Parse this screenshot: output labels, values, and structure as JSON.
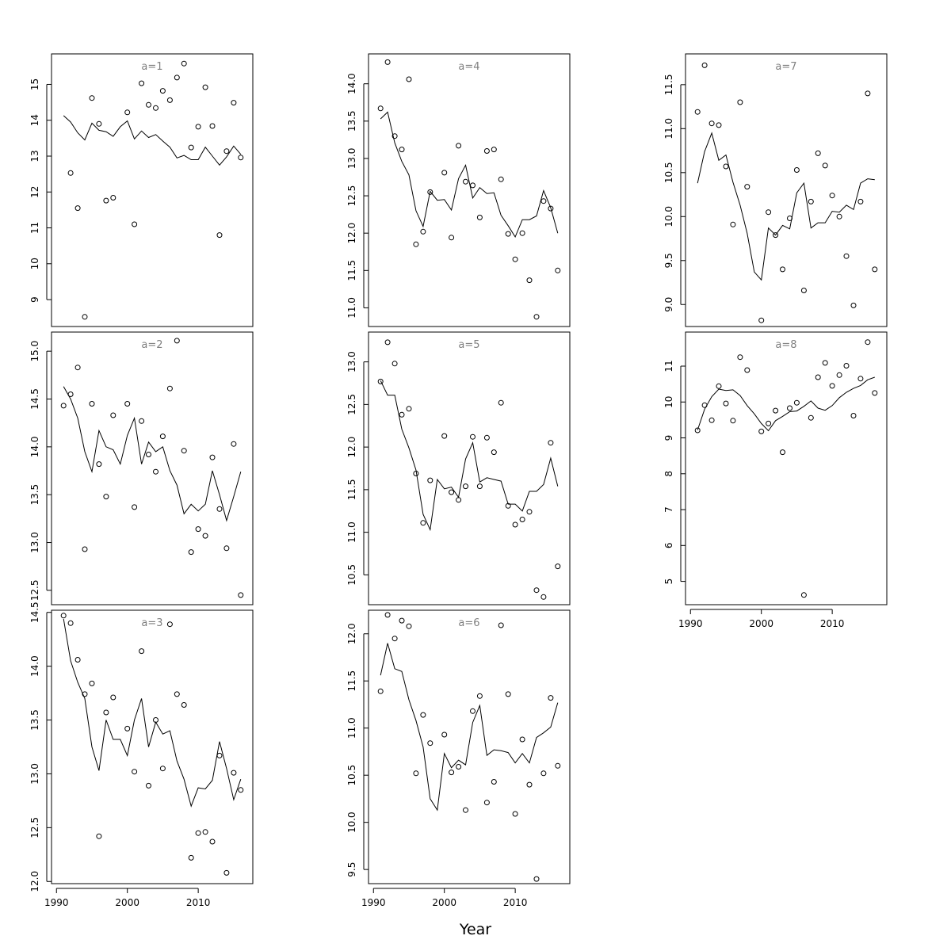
{
  "chart_data": {
    "type": "scatter",
    "xlabel": "Year",
    "x_ticks": [
      1990,
      2000,
      2010
    ],
    "colors": {
      "points": "#000000",
      "line": "#000000",
      "title": "#808080"
    },
    "years": [
      1991,
      1992,
      1993,
      1994,
      1995,
      1996,
      1997,
      1998,
      1999,
      2000,
      2001,
      2002,
      2003,
      2004,
      2005,
      2006,
      2007,
      2008,
      2009,
      2010,
      2011,
      2012,
      2013,
      2014,
      2015,
      2016
    ],
    "panels": [
      {
        "title": "a=1",
        "xlim": [
          1989.3,
          2017.7
        ],
        "ylim": [
          8.25,
          15.85
        ],
        "y_ticks": [
          "9",
          "10",
          "11",
          "12",
          "13",
          "14",
          "15"
        ],
        "observed": [
          null,
          12.53,
          11.55,
          8.52,
          14.62,
          13.9,
          11.76,
          11.84,
          null,
          14.22,
          11.1,
          15.03,
          14.43,
          14.34,
          14.82,
          14.56,
          15.19,
          15.58,
          13.24,
          13.82,
          14.92,
          13.84,
          10.8,
          13.14,
          14.49,
          12.96
        ],
        "fitted": [
          14.13,
          13.95,
          13.65,
          13.45,
          13.92,
          13.72,
          13.68,
          13.55,
          13.82,
          13.98,
          13.48,
          13.7,
          13.52,
          13.6,
          13.42,
          13.25,
          12.95,
          13.02,
          12.9,
          12.9,
          13.25,
          13.0,
          12.75,
          12.98,
          13.28,
          13.05
        ]
      },
      {
        "title": "a=2",
        "xlim": [
          1989.3,
          2017.7
        ],
        "ylim": [
          12.35,
          15.2
        ],
        "y_ticks": [
          "12.5",
          "13.0",
          "13.5",
          "14.0",
          "14.5",
          "15.0"
        ],
        "observed": [
          14.43,
          14.55,
          14.83,
          12.93,
          14.45,
          13.82,
          13.48,
          14.33,
          null,
          14.45,
          13.37,
          14.27,
          13.92,
          13.74,
          14.11,
          14.61,
          15.11,
          13.96,
          12.9,
          13.14,
          13.07,
          13.89,
          13.35,
          12.94,
          14.03,
          12.45
        ],
        "fitted": [
          14.63,
          14.5,
          14.3,
          13.95,
          13.74,
          14.17,
          14.0,
          13.97,
          13.82,
          14.12,
          14.3,
          13.82,
          14.05,
          13.95,
          14.0,
          13.75,
          13.6,
          13.3,
          13.4,
          13.33,
          13.4,
          13.75,
          13.5,
          13.23,
          13.48,
          13.74
        ]
      },
      {
        "title": "a=3",
        "xlim": [
          1989.3,
          2017.7
        ],
        "ylim": [
          11.98,
          14.52
        ],
        "y_ticks": [
          "12.0",
          "12.5",
          "13.0",
          "13.5",
          "14.0",
          "14.5"
        ],
        "observed": [
          14.47,
          14.4,
          14.06,
          13.74,
          13.84,
          12.42,
          13.57,
          13.71,
          null,
          13.42,
          13.02,
          14.14,
          12.89,
          13.5,
          13.05,
          14.39,
          13.74,
          13.64,
          12.22,
          12.45,
          12.46,
          12.37,
          13.17,
          12.08,
          13.01,
          12.85
        ],
        "fitted": [
          14.44,
          14.05,
          13.85,
          13.7,
          13.25,
          13.03,
          13.5,
          13.32,
          13.32,
          13.17,
          13.5,
          13.7,
          13.25,
          13.48,
          13.37,
          13.4,
          13.12,
          12.95,
          12.7,
          12.87,
          12.86,
          12.94,
          13.3,
          13.05,
          12.76,
          12.95
        ]
      },
      {
        "title": "a=4",
        "xlim": [
          1989.3,
          2017.7
        ],
        "ylim": [
          10.75,
          14.4
        ],
        "y_ticks": [
          "11.0",
          "11.5",
          "12.0",
          "12.5",
          "13.0",
          "13.5",
          "14.0"
        ],
        "observed": [
          13.67,
          14.29,
          13.3,
          13.12,
          14.06,
          11.85,
          12.02,
          12.55,
          null,
          12.81,
          11.94,
          13.17,
          12.69,
          12.64,
          12.21,
          13.1,
          13.12,
          12.72,
          11.99,
          11.65,
          12.0,
          11.37,
          10.88,
          12.43,
          12.33,
          11.5
        ],
        "fitted": [
          13.53,
          13.62,
          13.21,
          12.96,
          12.78,
          12.3,
          12.09,
          12.56,
          12.44,
          12.45,
          12.31,
          12.73,
          12.91,
          12.47,
          12.61,
          12.53,
          12.54,
          12.24,
          12.1,
          11.95,
          12.18,
          12.18,
          12.23,
          12.57,
          12.34,
          12.0
        ]
      },
      {
        "title": "a=5",
        "xlim": [
          1989.3,
          2017.7
        ],
        "ylim": [
          10.15,
          13.35
        ],
        "y_ticks": [
          "10.5",
          "11.0",
          "11.5",
          "12.0",
          "12.5",
          "13.0"
        ],
        "observed": [
          12.77,
          13.23,
          12.98,
          12.38,
          12.45,
          11.69,
          11.11,
          11.61,
          null,
          12.13,
          11.47,
          11.38,
          11.54,
          12.12,
          11.54,
          12.11,
          11.94,
          12.52,
          11.31,
          11.09,
          11.15,
          11.24,
          10.32,
          10.24,
          12.05,
          10.6
        ],
        "fitted": [
          12.78,
          12.61,
          12.61,
          12.21,
          11.99,
          11.73,
          11.21,
          11.03,
          11.62,
          11.51,
          11.53,
          11.41,
          11.86,
          12.05,
          11.59,
          11.64,
          11.62,
          11.6,
          11.33,
          11.33,
          11.25,
          11.48,
          11.48,
          11.56,
          11.87,
          11.54
        ]
      },
      {
        "title": "a=6",
        "xlim": [
          1989.3,
          2017.7
        ],
        "ylim": [
          9.35,
          12.25
        ],
        "y_ticks": [
          "9.5",
          "10.0",
          "10.5",
          "11.0",
          "11.5",
          "12.0"
        ],
        "observed": [
          11.39,
          12.2,
          11.95,
          12.14,
          12.08,
          10.52,
          11.14,
          10.84,
          null,
          10.93,
          10.53,
          10.59,
          10.13,
          11.18,
          11.34,
          10.21,
          10.43,
          12.09,
          11.36,
          10.09,
          10.88,
          10.4,
          9.4,
          10.52,
          11.32,
          10.6
        ],
        "fitted": [
          11.56,
          11.9,
          11.63,
          11.6,
          11.3,
          11.08,
          10.8,
          10.25,
          10.13,
          10.73,
          10.58,
          10.66,
          10.61,
          11.06,
          11.24,
          10.71,
          10.77,
          10.76,
          10.74,
          10.63,
          10.73,
          10.63,
          10.9,
          10.95,
          11.01,
          11.27
        ]
      },
      {
        "title": "a=7",
        "xlim": [
          1989.3,
          2017.7
        ],
        "ylim": [
          8.75,
          11.85
        ],
        "y_ticks": [
          "9.0",
          "9.5",
          "10.0",
          "10.5",
          "11.0",
          "11.5"
        ],
        "observed": [
          11.19,
          11.72,
          11.06,
          11.04,
          10.57,
          9.91,
          11.3,
          10.34,
          null,
          8.82,
          10.05,
          9.79,
          9.4,
          9.98,
          10.53,
          9.16,
          10.17,
          10.72,
          10.58,
          10.24,
          10.0,
          9.55,
          8.99,
          10.17,
          11.4,
          9.4
        ],
        "fitted": [
          10.38,
          10.74,
          10.95,
          10.64,
          10.7,
          10.39,
          10.13,
          9.81,
          9.37,
          9.28,
          9.87,
          9.79,
          9.9,
          9.86,
          10.27,
          10.38,
          9.87,
          9.93,
          9.93,
          10.06,
          10.05,
          10.13,
          10.08,
          10.38,
          10.43,
          10.42
        ]
      },
      {
        "title": "a=8",
        "xlim": [
          1989.3,
          2017.7
        ],
        "ylim": [
          4.35,
          11.95
        ],
        "y_ticks": [
          "5",
          "6",
          "7",
          "8",
          "9",
          "10",
          "11"
        ],
        "observed": [
          9.21,
          9.91,
          9.49,
          10.44,
          9.96,
          9.48,
          11.25,
          10.89,
          null,
          9.18,
          9.4,
          9.76,
          8.6,
          9.83,
          9.98,
          4.62,
          9.56,
          10.69,
          11.09,
          10.45,
          10.75,
          11.01,
          9.62,
          10.65,
          11.67,
          10.25
        ],
        "fitted": [
          9.22,
          9.8,
          10.15,
          10.36,
          10.32,
          10.34,
          10.18,
          9.9,
          9.67,
          9.4,
          9.2,
          9.48,
          9.6,
          9.73,
          9.75,
          9.88,
          10.03,
          9.83,
          9.77,
          9.9,
          10.12,
          10.27,
          10.38,
          10.46,
          10.62,
          10.69
        ]
      }
    ]
  }
}
